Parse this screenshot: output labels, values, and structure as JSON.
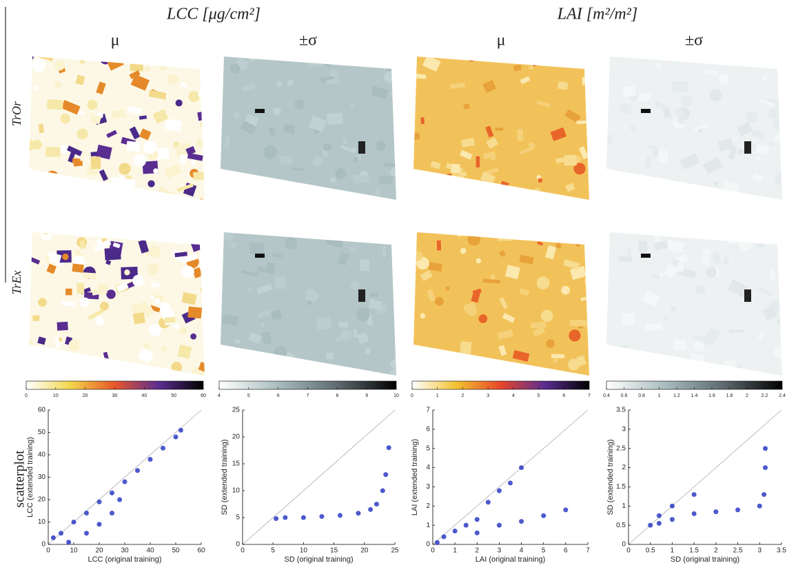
{
  "header": {
    "lcc": "LCC [μg/cm²]",
    "lai": "LAI [m²/m²]"
  },
  "columns": [
    "μ",
    "±σ",
    "μ",
    "±σ"
  ],
  "rows": [
    "TrOr",
    "TrEx",
    "scatterplot"
  ],
  "colorbars": [
    {
      "lim": [
        0,
        60
      ],
      "ticks": [
        0,
        10,
        20,
        30,
        40,
        50,
        60
      ],
      "colors": [
        "#ffffff",
        "#f2d64a",
        "#e8562a",
        "#5a2d91",
        "#000000"
      ]
    },
    {
      "lim": [
        4,
        10
      ],
      "ticks": [
        4,
        5,
        6,
        7,
        8,
        9,
        10
      ],
      "colors": [
        "#ffffff",
        "#a9bcbe",
        "#5e6b70",
        "#000000"
      ]
    },
    {
      "lim": [
        0,
        7
      ],
      "ticks": [
        0,
        1,
        2,
        3,
        4,
        5,
        6,
        7
      ],
      "colors": [
        "#ffffff",
        "#f2c230",
        "#e8462a",
        "#5a2d91",
        "#000000"
      ]
    },
    {
      "lim": [
        0.4,
        2.4
      ],
      "ticks": [
        0.4,
        0.6,
        0.8,
        1,
        1.2,
        1.4,
        1.6,
        1.8,
        2,
        2.2,
        2.4
      ],
      "colors": [
        "#ffffff",
        "#a9bcbe",
        "#5e6b70",
        "#000000"
      ]
    }
  ],
  "chart_data": [
    {
      "type": "scatter",
      "xlabel": "LCC (original training)",
      "ylabel": "LCC (extended training)",
      "color": "#1f2fbf",
      "x": [
        2,
        5,
        10,
        15,
        20,
        25,
        30,
        35,
        40,
        45,
        50,
        52,
        8,
        15,
        20,
        25,
        28
      ],
      "values": [
        3,
        5,
        10,
        14,
        19,
        23,
        28,
        33,
        38,
        43,
        48,
        51,
        1,
        5,
        9,
        14,
        20
      ],
      "xlim": [
        0,
        60
      ],
      "ylim": [
        0,
        60
      ],
      "xticks": [
        0,
        10,
        20,
        30,
        40,
        50,
        60
      ],
      "yticks": [
        0,
        10,
        20,
        30,
        40,
        50,
        60
      ]
    },
    {
      "type": "scatter",
      "xlabel": "SD (original training)",
      "ylabel": "SD (extended training)",
      "color": "#1f2fbf",
      "x": [
        5.5,
        7,
        10,
        13,
        16,
        19,
        21,
        22,
        23,
        23.5,
        24
      ],
      "values": [
        4.8,
        5,
        5,
        5.2,
        5.4,
        5.8,
        6.5,
        7.5,
        10,
        13,
        18
      ],
      "xlim": [
        0,
        25
      ],
      "ylim": [
        0,
        25
      ],
      "xticks": [
        0,
        5,
        10,
        15,
        20,
        25
      ],
      "yticks": [
        0,
        5,
        10,
        15,
        20,
        25
      ]
    },
    {
      "type": "scatter",
      "xlabel": "LAI (original training)",
      "ylabel": "LAI (extended training)",
      "color": "#1f2fbf",
      "x": [
        0.2,
        0.5,
        1,
        1.5,
        2,
        2.5,
        3,
        3.5,
        4,
        2,
        3,
        4,
        5,
        6
      ],
      "values": [
        0.1,
        0.4,
        0.7,
        1,
        1.3,
        2.2,
        2.8,
        3.2,
        4,
        0.6,
        1,
        1.2,
        1.5,
        1.8
      ],
      "xlim": [
        0,
        7
      ],
      "ylim": [
        0,
        7
      ],
      "xticks": [
        0,
        1,
        2,
        3,
        4,
        5,
        6,
        7
      ],
      "yticks": [
        0,
        1,
        2,
        3,
        4,
        5,
        6,
        7
      ]
    },
    {
      "type": "scatter",
      "xlabel": "SD (original training)",
      "ylabel": "SD (extended training)",
      "color": "#1f2fbf",
      "x": [
        0.5,
        0.7,
        1,
        1.5,
        2,
        2.5,
        3,
        3.1,
        3.13,
        3.13,
        0.7,
        1,
        1.5
      ],
      "values": [
        0.5,
        0.55,
        0.65,
        0.8,
        0.85,
        0.9,
        1,
        1.3,
        2,
        2.5,
        0.75,
        1,
        1.3
      ],
      "xlim": [
        0,
        3.5
      ],
      "ylim": [
        0,
        3.5
      ],
      "xticks": [
        0,
        0.5,
        1,
        1.5,
        2,
        2.5,
        3,
        3.5
      ],
      "yticks": [
        0,
        0.5,
        1,
        1.5,
        2,
        2.5,
        3,
        3.5
      ]
    }
  ]
}
